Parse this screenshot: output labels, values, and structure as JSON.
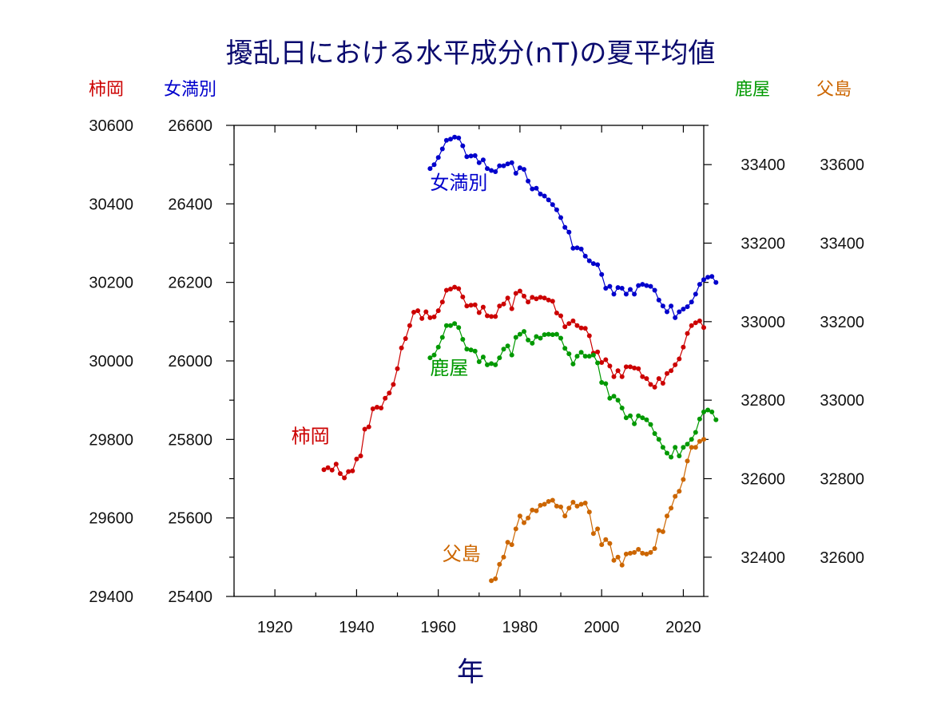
{
  "chart_data": {
    "type": "line",
    "title": "擾乱日における水平成分(nT)の夏平均値",
    "xlabel": "年",
    "x_ticks": [
      1920,
      1940,
      1960,
      1980,
      2000,
      2020
    ],
    "xlim": [
      1910,
      2025
    ],
    "axes": [
      {
        "id": "kakioka",
        "side": "left",
        "label": "柿岡",
        "ylim": [
          29400,
          30600
        ],
        "ticks": [
          29400,
          29600,
          29800,
          30000,
          30200,
          30400,
          30600
        ],
        "color": "#cc0000"
      },
      {
        "id": "memambetsu",
        "side": "left",
        "label": "女満別",
        "ylim": [
          25400,
          26600
        ],
        "ticks": [
          25400,
          25600,
          25800,
          26000,
          26200,
          26400,
          26600
        ],
        "color": "#0000cc"
      },
      {
        "id": "kanoya",
        "side": "right",
        "label": "鹿屋",
        "ylim": [
          32300,
          33500
        ],
        "ticks": [
          32400,
          32600,
          32800,
          33000,
          33200,
          33400
        ],
        "color": "#009900"
      },
      {
        "id": "chichijima",
        "side": "right",
        "label": "父島",
        "ylim": [
          32500,
          33700
        ],
        "ticks": [
          32600,
          32800,
          33000,
          33200,
          33400,
          33600
        ],
        "color": "#cc6600"
      }
    ],
    "series": [
      {
        "name": "柿岡",
        "axis": "kakioka",
        "color": "#cc0000",
        "x_start": 1932,
        "values": [
          29723,
          29728,
          29722,
          29737,
          29713,
          29702,
          29718,
          29720,
          29750,
          29758,
          29826,
          29832,
          29878,
          29882,
          29880,
          29905,
          29918,
          29940,
          29980,
          30033,
          30057,
          30090,
          30124,
          30128,
          30108,
          30125,
          30110,
          30112,
          30128,
          30150,
          30180,
          30183,
          30188,
          30184,
          30163,
          30140,
          30142,
          30143,
          30123,
          30137,
          30115,
          30113,
          30113,
          30140,
          30145,
          30160,
          30133,
          30172,
          30178,
          30165,
          30150,
          30162,
          30158,
          30162,
          30160,
          30155,
          30152,
          30122,
          30115,
          30087,
          30095,
          30102,
          30090,
          30084,
          30083,
          30064,
          30020,
          30023,
          29996,
          30003,
          29987,
          29960,
          29975,
          29960,
          29985,
          29985,
          29982,
          29980,
          29960,
          29955,
          29940,
          29933,
          29955,
          29943,
          29968,
          29975,
          29990,
          30005,
          30035,
          30070,
          30090,
          30097,
          30102,
          30085
        ]
      },
      {
        "name": "女満別",
        "axis": "memambetsu",
        "color": "#0000cc",
        "x_start": 1958,
        "values": [
          26490,
          26500,
          26518,
          26540,
          26562,
          26565,
          26570,
          26568,
          26548,
          26520,
          26522,
          26523,
          26505,
          26512,
          26490,
          26485,
          26482,
          26497,
          26497,
          26502,
          26505,
          26478,
          26492,
          26488,
          26458,
          26438,
          26440,
          26425,
          26420,
          26410,
          26398,
          26385,
          26365,
          26340,
          26328,
          26287,
          26288,
          26285,
          26267,
          26255,
          26248,
          26245,
          26220,
          26185,
          26190,
          26170,
          26187,
          26185,
          26170,
          26182,
          26170,
          26192,
          26195,
          26192,
          26190,
          26180,
          26155,
          26140,
          26125,
          26140,
          26110,
          26125,
          26132,
          26138,
          26150,
          26170,
          26195,
          26207,
          26213,
          26215,
          26200
        ]
      },
      {
        "name": "鹿屋",
        "axis": "kanoya",
        "color": "#009900",
        "x_start": 1958,
        "values": [
          32908,
          32915,
          32935,
          32960,
          32990,
          32990,
          32995,
          32985,
          32955,
          32930,
          32928,
          32925,
          32898,
          32910,
          32890,
          32893,
          32890,
          32908,
          32930,
          32938,
          32915,
          32960,
          32968,
          32975,
          32953,
          32945,
          32962,
          32958,
          32967,
          32968,
          32967,
          32968,
          32958,
          32932,
          32918,
          32892,
          32912,
          32922,
          32912,
          32912,
          32915,
          32895,
          32845,
          32842,
          32805,
          32810,
          32800,
          32780,
          32755,
          32760,
          32740,
          32760,
          32755,
          32750,
          32738,
          32715,
          32700,
          32680,
          32665,
          32655,
          32680,
          32658,
          32680,
          32688,
          32700,
          32718,
          32752,
          32770,
          32775,
          32770,
          32750
        ]
      },
      {
        "name": "父島",
        "axis": "chichijima",
        "color": "#cc6600",
        "x_start": 1973,
        "values": [
          32540,
          32545,
          32582,
          32600,
          32638,
          32632,
          32672,
          32705,
          32688,
          32700,
          32720,
          32718,
          32732,
          32735,
          32742,
          32745,
          32730,
          32728,
          32705,
          32725,
          32740,
          32730,
          32735,
          32738,
          32715,
          32660,
          32672,
          32632,
          32645,
          32635,
          32592,
          32600,
          32580,
          32608,
          32610,
          32612,
          32620,
          32610,
          32608,
          32612,
          32622,
          32668,
          32665,
          32705,
          32725,
          32755,
          32768,
          32798,
          32845,
          32880,
          32880,
          32895,
          32900
        ]
      }
    ],
    "series_labels": [
      {
        "series": "女満別",
        "anchor_year": 1958,
        "anchor_value": 26437
      },
      {
        "series": "鹿屋",
        "anchor_year": 1958,
        "anchor_value": 32865
      },
      {
        "series": "柿岡",
        "anchor_year": 1924,
        "anchor_value": 29792
      },
      {
        "series": "父島",
        "anchor_year": 1961,
        "anchor_value": 32592
      }
    ],
    "grid": false,
    "legend": "none"
  }
}
